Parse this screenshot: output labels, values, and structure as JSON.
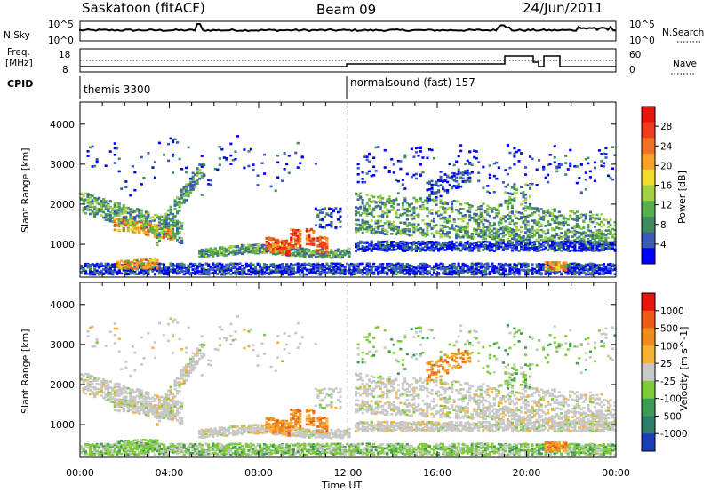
{
  "header": {
    "radar": "Saskatoon (fitACF)",
    "beam": "Beam 09",
    "date": "24/Jun/2011"
  },
  "strips": {
    "nsky_label": "N.Sky",
    "nsky_ticks": [
      "10^5",
      "10^0"
    ],
    "nsearch_label": "N.Search",
    "nsearch_ticks": [
      "10^5",
      "10^0"
    ],
    "freq_label_1": "Freq.",
    "freq_label_2": "[MHz]",
    "freq_ticks": [
      "18",
      "8"
    ],
    "nave_label": "Nave",
    "nave_ticks": [
      "60",
      "0"
    ],
    "cpid_label": "CPID",
    "cpid_modes": [
      "themis 3300",
      "normalsound (fast) 157"
    ]
  },
  "chart_data": [
    {
      "type": "heatmap",
      "name": "power",
      "ylabel": "Slant Range [km]",
      "xlabel": "Time UT",
      "xlim": [
        0,
        24
      ],
      "ylim": [
        180,
        4550
      ],
      "x_ticks": [
        "00:00",
        "04:00",
        "08:00",
        "12:00",
        "16:00",
        "20:00",
        "00:00"
      ],
      "y_ticks": [
        1000,
        2000,
        3000,
        4000
      ],
      "colorbar_label": "Power [dB]",
      "colorbar_ticks": [
        "28",
        "24",
        "20",
        "16",
        "12",
        "8",
        "4"
      ],
      "colors": [
        "#0000ff",
        "#3d5ab7",
        "#3f8a5e",
        "#56b04d",
        "#a6d044",
        "#f2dc2e",
        "#f7a329",
        "#f07323",
        "#ee3d1c",
        "#e8150e"
      ],
      "scatter_echo_bands": [
        {
          "t0": 0.0,
          "t1": 4.6,
          "r0": 1500,
          "r1": 2200,
          "level": "high"
        },
        {
          "t0": 3.5,
          "t1": 5.2,
          "r0": 1200,
          "r1": 2900,
          "level": "high"
        },
        {
          "t0": 8.2,
          "t1": 11.0,
          "r0": 750,
          "r1": 1350,
          "level": "very high"
        },
        {
          "t0": 12.3,
          "t1": 24.0,
          "r0": 750,
          "r1": 2600,
          "level": "moderate"
        }
      ]
    },
    {
      "type": "heatmap",
      "name": "velocity",
      "ylabel": "Slant Range [km]",
      "xlabel": "Time UT",
      "xlim": [
        0,
        24
      ],
      "ylim": [
        180,
        4550
      ],
      "x_ticks": [
        "00:00",
        "04:00",
        "08:00",
        "12:00",
        "16:00",
        "20:00",
        "00:00"
      ],
      "y_ticks": [
        1000,
        2000,
        3000,
        4000
      ],
      "colorbar_label": "Velocity [m s^-1]",
      "colorbar_ticks": [
        "1000",
        "500",
        "100",
        "25",
        "-25",
        "-100",
        "-500",
        "-1000"
      ],
      "colors": [
        "#1b3db8",
        "#2e7d6a",
        "#3e9b55",
        "#7fcc3a",
        "#c8c8c8",
        "#f6b232",
        "#f08c1e",
        "#ee5a18",
        "#e8150e"
      ]
    }
  ],
  "footer": {
    "xlabel": "Time UT"
  }
}
